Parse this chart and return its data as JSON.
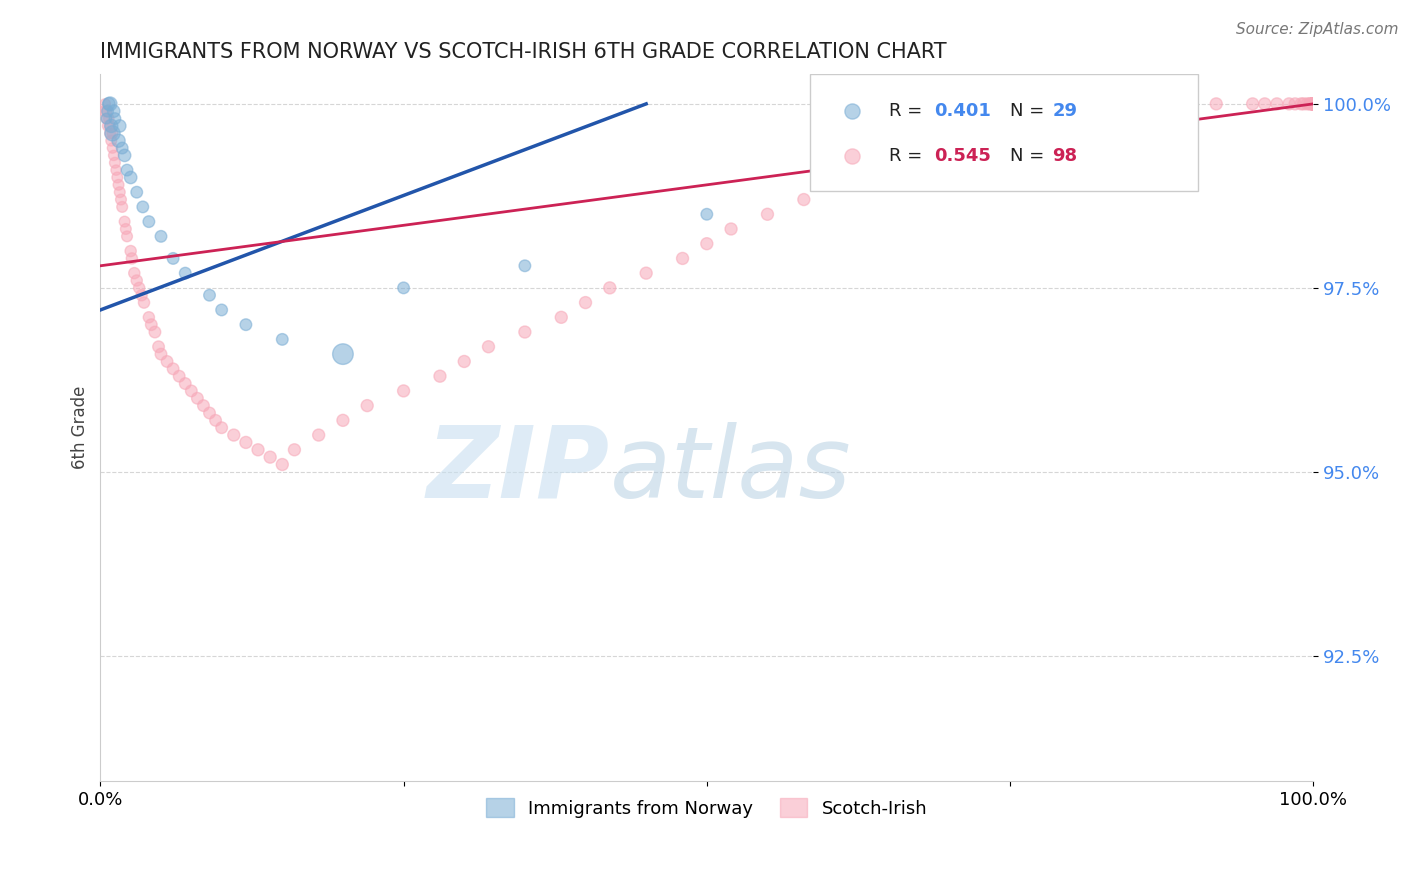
{
  "title": "IMMIGRANTS FROM NORWAY VS SCOTCH-IRISH 6TH GRADE CORRELATION CHART",
  "source": "Source: ZipAtlas.com",
  "ylabel": "6th Grade",
  "xlim": [
    0.0,
    1.0
  ],
  "ylim": [
    0.908,
    1.004
  ],
  "yticks": [
    0.925,
    0.95,
    0.975,
    1.0
  ],
  "ytick_labels": [
    "92.5%",
    "95.0%",
    "97.5%",
    "100.0%"
  ],
  "norway_R": 0.401,
  "norway_N": 29,
  "scotch_R": 0.545,
  "scotch_N": 98,
  "norway_color": "#7aadd4",
  "scotch_color": "#f7a8b8",
  "trend_norway_color": "#2255aa",
  "trend_scotch_color": "#cc2255",
  "background_color": "#ffffff",
  "norway_x": [
    0.005,
    0.006,
    0.007,
    0.008,
    0.009,
    0.01,
    0.011,
    0.012,
    0.015,
    0.016,
    0.018,
    0.02,
    0.022,
    0.025,
    0.03,
    0.035,
    0.04,
    0.05,
    0.06,
    0.07,
    0.09,
    0.1,
    0.12,
    0.15,
    0.2,
    0.25,
    0.35,
    0.5,
    0.9
  ],
  "norway_y": [
    0.998,
    0.999,
    1.0,
    1.0,
    0.997,
    0.996,
    0.999,
    0.998,
    0.995,
    0.997,
    0.994,
    0.993,
    0.991,
    0.99,
    0.988,
    0.986,
    0.984,
    0.982,
    0.979,
    0.977,
    0.974,
    0.972,
    0.97,
    0.968,
    0.966,
    0.975,
    0.978,
    0.985,
    1.0
  ],
  "norway_sizes": [
    60,
    70,
    80,
    100,
    90,
    120,
    80,
    70,
    90,
    80,
    70,
    80,
    70,
    80,
    70,
    70,
    70,
    70,
    70,
    70,
    70,
    70,
    70,
    70,
    220,
    70,
    70,
    70,
    70
  ],
  "scotch_x": [
    0.003,
    0.004,
    0.005,
    0.005,
    0.006,
    0.007,
    0.008,
    0.008,
    0.009,
    0.01,
    0.01,
    0.011,
    0.012,
    0.013,
    0.014,
    0.015,
    0.016,
    0.017,
    0.018,
    0.02,
    0.021,
    0.022,
    0.025,
    0.026,
    0.028,
    0.03,
    0.032,
    0.034,
    0.036,
    0.04,
    0.042,
    0.045,
    0.048,
    0.05,
    0.055,
    0.06,
    0.065,
    0.07,
    0.075,
    0.08,
    0.085,
    0.09,
    0.095,
    0.1,
    0.11,
    0.12,
    0.13,
    0.14,
    0.15,
    0.16,
    0.18,
    0.2,
    0.22,
    0.25,
    0.28,
    0.3,
    0.32,
    0.35,
    0.38,
    0.4,
    0.42,
    0.45,
    0.48,
    0.5,
    0.52,
    0.55,
    0.58,
    0.6,
    0.65,
    0.7,
    0.75,
    0.8,
    0.85,
    0.9,
    0.92,
    0.95,
    0.96,
    0.97,
    0.98,
    0.985,
    0.99,
    0.992,
    0.995,
    0.997,
    0.998,
    0.999,
    1.0,
    1.0,
    1.0,
    1.0,
    1.0,
    1.0,
    1.0,
    1.0,
    1.0,
    1.0,
    1.0,
    1.0
  ],
  "scotch_y": [
    0.999,
    1.0,
    0.998,
    0.999,
    0.997,
    0.998,
    0.996,
    0.997,
    0.995,
    0.994,
    0.996,
    0.993,
    0.992,
    0.991,
    0.99,
    0.989,
    0.988,
    0.987,
    0.986,
    0.984,
    0.983,
    0.982,
    0.98,
    0.979,
    0.977,
    0.976,
    0.975,
    0.974,
    0.973,
    0.971,
    0.97,
    0.969,
    0.967,
    0.966,
    0.965,
    0.964,
    0.963,
    0.962,
    0.961,
    0.96,
    0.959,
    0.958,
    0.957,
    0.956,
    0.955,
    0.954,
    0.953,
    0.952,
    0.951,
    0.953,
    0.955,
    0.957,
    0.959,
    0.961,
    0.963,
    0.965,
    0.967,
    0.969,
    0.971,
    0.973,
    0.975,
    0.977,
    0.979,
    0.981,
    0.983,
    0.985,
    0.987,
    0.989,
    0.991,
    0.993,
    0.995,
    0.997,
    0.999,
    1.0,
    1.0,
    1.0,
    1.0,
    1.0,
    1.0,
    1.0,
    1.0,
    1.0,
    1.0,
    1.0,
    1.0,
    1.0,
    1.0,
    1.0,
    1.0,
    1.0,
    1.0,
    1.0,
    1.0,
    1.0,
    1.0,
    1.0,
    1.0,
    1.0
  ],
  "scotch_sizes": [
    55,
    55,
    55,
    60,
    55,
    55,
    60,
    55,
    60,
    55,
    60,
    55,
    60,
    55,
    60,
    60,
    60,
    60,
    60,
    60,
    60,
    60,
    65,
    65,
    65,
    65,
    65,
    65,
    65,
    65,
    70,
    70,
    70,
    70,
    70,
    70,
    70,
    70,
    70,
    70,
    70,
    70,
    70,
    70,
    75,
    75,
    75,
    75,
    75,
    75,
    75,
    75,
    75,
    75,
    75,
    75,
    75,
    75,
    75,
    75,
    75,
    75,
    75,
    75,
    75,
    75,
    75,
    75,
    75,
    75,
    75,
    75,
    75,
    75,
    75,
    75,
    75,
    75,
    75,
    75,
    75,
    75,
    75,
    75,
    75,
    75,
    75,
    75,
    75,
    75,
    75,
    75,
    75,
    75,
    75,
    75,
    75,
    75
  ]
}
